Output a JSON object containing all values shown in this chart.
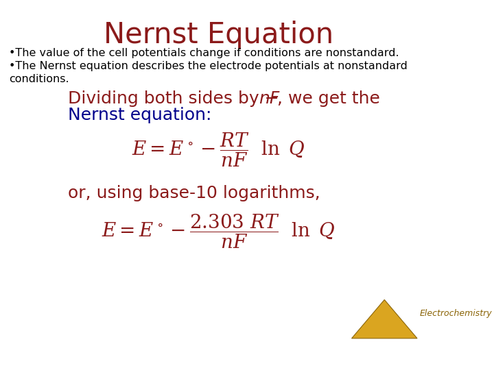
{
  "title": "Nernst Equation",
  "title_color": "#8B1A1A",
  "title_fontsize": 30,
  "bg_color": "#FFFFFF",
  "bullet1": "•The value of the cell potentials change if conditions are nonstandard.",
  "bullet2_line1": "•The Nernst equation describes the electrode potentials at nonstandard",
  "bullet2_line2": "conditions.",
  "bullet_fontsize": 11.5,
  "bullet_color": "#000000",
  "dividing_color": "#8B1A1A",
  "dividing_fontsize": 18,
  "nernst_label_color": "#00008B",
  "nernst_label_fontsize": 18,
  "eq_color": "#8B1A1A",
  "eq_fontsize": 18,
  "or_text": "or, using base-10 logarithms,",
  "or_fontsize": 18,
  "or_color": "#8B1A1A",
  "footer_text": "Electrochemistry",
  "footer_fontsize": 9,
  "footer_color": "#8B6508",
  "triangle_color": "#DAA520",
  "triangle_edge_color": "#8B6508"
}
